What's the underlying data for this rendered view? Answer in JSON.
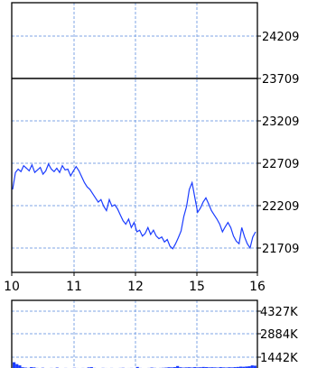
{
  "chart_data": [
    {
      "type": "line",
      "title": "",
      "xlabel": "",
      "ylabel": "",
      "x_ticks": [
        "10",
        "11",
        "12",
        "15",
        "16"
      ],
      "y_ticks": [
        "24209",
        "23709",
        "23209",
        "22709",
        "22209",
        "21709"
      ],
      "ylim": [
        21609,
        24409
      ],
      "reference_line": 23709,
      "grid": true,
      "colors": {
        "series": "#1a3cff",
        "grid": "#7fa6e6",
        "frame": "#000000"
      },
      "series": [
        {
          "values": [
            22400,
            22600,
            22640,
            22610,
            22680,
            22650,
            22620,
            22690,
            22600,
            22630,
            22660,
            22580,
            22620,
            22700,
            22640,
            22610,
            22650,
            22600,
            22680,
            22630,
            22640,
            22560,
            22620,
            22670,
            22620,
            22550,
            22480,
            22430,
            22400,
            22350,
            22300,
            22250,
            22280,
            22200,
            22150,
            22280,
            22200,
            22220,
            22170,
            22100,
            22030,
            21990,
            22050,
            21950,
            22010,
            21900,
            21920,
            21850,
            21880,
            21950,
            21870,
            21920,
            21850,
            21820,
            21840,
            21780,
            21810,
            21730,
            21700,
            21760,
            21830,
            21910,
            22080,
            22200,
            22400,
            22480,
            22300,
            22130,
            22180,
            22250,
            22300,
            22230,
            22150,
            22100,
            22050,
            21990,
            21900,
            21960,
            22010,
            21950,
            21850,
            21790,
            21760,
            21950,
            21840,
            21760,
            21710,
            21840,
            21900
          ]
        }
      ]
    },
    {
      "type": "bar",
      "title": "",
      "y_ticks": [
        "4327K",
        "2884K",
        "1442K"
      ],
      "ylim": [
        0,
        5000
      ],
      "colors": {
        "series": "#1a3cff"
      },
      "series": [
        {
          "values": [
            1200,
            900,
            700,
            400,
            350,
            300,
            420,
            380,
            300,
            250,
            330,
            280,
            260,
            300,
            280,
            350,
            270,
            250,
            300,
            260,
            280,
            320,
            290,
            260,
            300,
            270,
            380,
            420,
            300,
            280,
            260,
            310,
            290,
            270,
            300,
            280,
            260,
            300,
            320,
            270,
            290,
            300,
            280,
            450,
            300,
            270,
            260,
            300,
            350,
            310,
            280,
            300,
            320,
            350,
            400,
            380,
            420,
            600,
            400,
            350,
            380,
            400,
            360,
            420,
            380,
            400,
            450,
            420,
            380,
            400,
            380,
            350,
            420,
            380,
            360,
            400,
            380,
            420,
            450,
            500,
            480,
            520,
            560,
            700,
            650
          ]
        }
      ]
    }
  ]
}
